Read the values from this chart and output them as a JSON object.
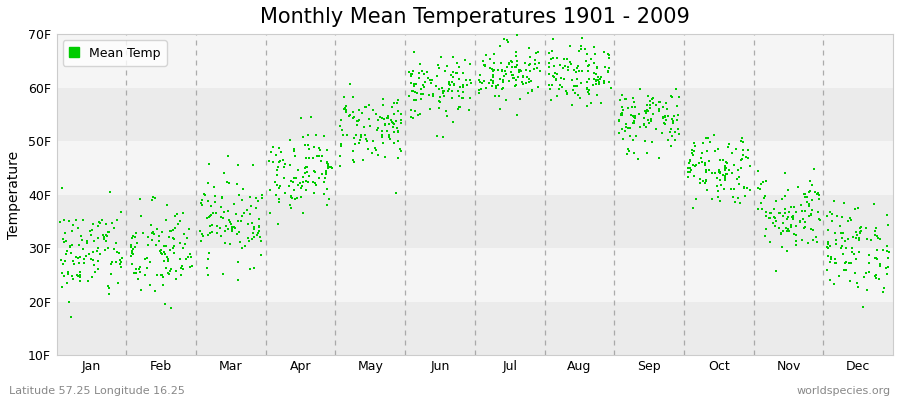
{
  "title": "Monthly Mean Temperatures 1901 - 2009",
  "ylabel": "Temperature",
  "xlabel": "",
  "bottom_left_text": "Latitude 57.25 Longitude 16.25",
  "bottom_right_text": "worldspecies.org",
  "legend_label": "Mean Temp",
  "dot_color": "#00cc00",
  "figure_bg": "#ffffff",
  "plot_bg": "#ffffff",
  "band_colors": [
    "#ebebeb",
    "#f5f5f5"
  ],
  "ylim": [
    10,
    70
  ],
  "yticks": [
    10,
    20,
    30,
    40,
    50,
    60,
    70
  ],
  "ytick_labels": [
    "10F",
    "20F",
    "30F",
    "40F",
    "50F",
    "60F",
    "70F"
  ],
  "months": [
    "Jan",
    "Feb",
    "Mar",
    "Apr",
    "May",
    "Jun",
    "Jul",
    "Aug",
    "Sep",
    "Oct",
    "Nov",
    "Dec"
  ],
  "month_mean_F": [
    29.0,
    29.0,
    35.5,
    44.5,
    52.5,
    59.5,
    63.0,
    62.0,
    54.0,
    45.0,
    36.5,
    30.0
  ],
  "month_std_F": [
    4.5,
    4.8,
    4.2,
    3.8,
    3.5,
    3.0,
    2.8,
    2.8,
    3.2,
    3.5,
    3.8,
    4.2
  ],
  "n_years": 109,
  "seed": 42,
  "title_fontsize": 15,
  "axis_fontsize": 10,
  "tick_fontsize": 9,
  "legend_fontsize": 9,
  "dot_size": 4,
  "dot_marker": "s",
  "dashed_line_color": "#999999"
}
